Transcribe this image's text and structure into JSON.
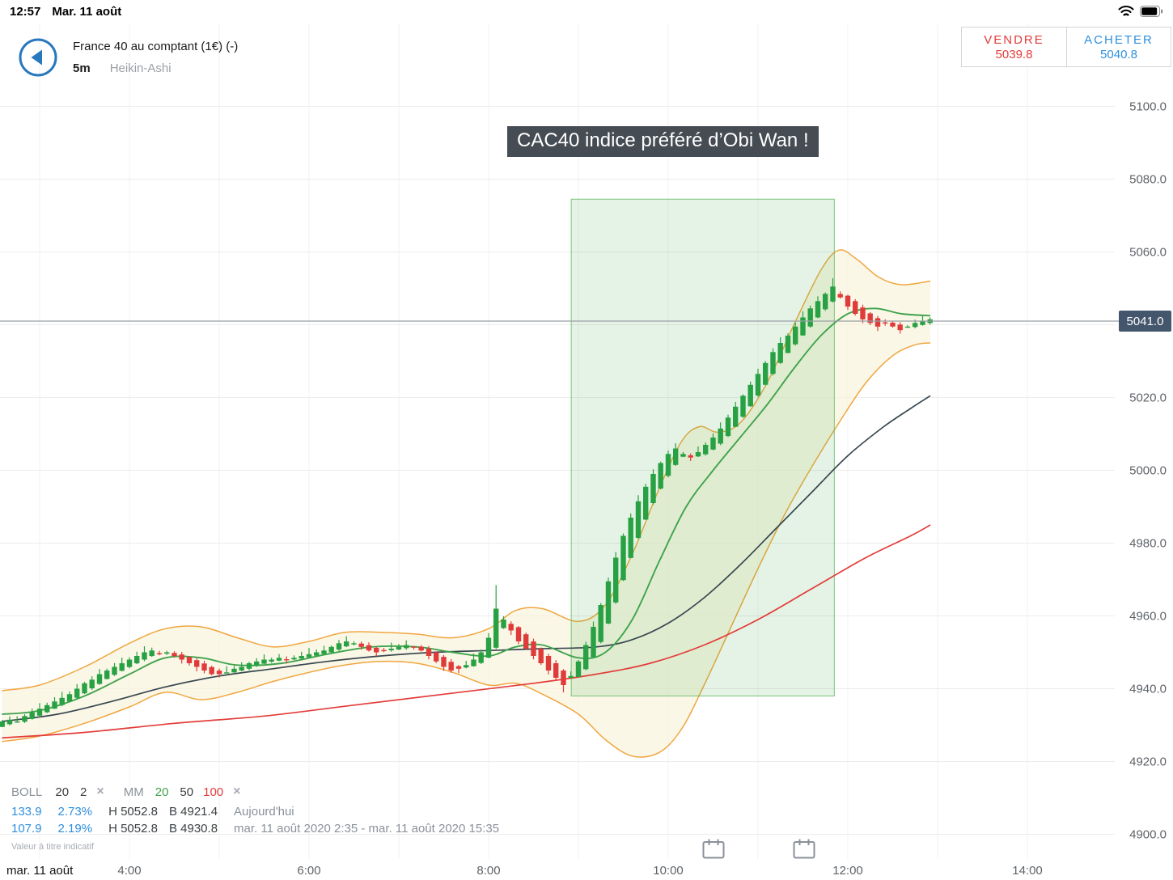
{
  "status_bar": {
    "time": "12:57",
    "date": "Mar. 11 août"
  },
  "header": {
    "instrument": "France 40 au comptant (1€) (-)",
    "timeframe": "5m",
    "chart_type": "Heikin-Ashi",
    "sell": {
      "label": "VENDRE",
      "price": "5039.8"
    },
    "buy": {
      "label": "ACHETER",
      "price": "5040.8"
    }
  },
  "annotation": {
    "text": "CAC40 indice préféré d’Obi Wan !"
  },
  "price_badge": "5041.0",
  "indicators": {
    "boll_label": "BOLL",
    "boll_period": "20",
    "boll_dev": "2",
    "mm_label": "MM",
    "mm_20": "20",
    "mm_50": "50",
    "mm_100": "100",
    "remove_icon": "×",
    "rows": [
      {
        "value": "133.9",
        "percent": "2.73%",
        "high": "H 5052.8",
        "low": "B 4921.4",
        "period": "Aujourd'hui"
      },
      {
        "value": "107.9",
        "percent": "2.19%",
        "high": "H 5052.8",
        "low": "B 4930.8",
        "period": "mar. 11 août 2020 2:35 - mar. 11 août 2020 15:35"
      }
    ],
    "disclaimer": "Valeur à titre indicatif"
  },
  "x_axis": {
    "date_label": "mar. 11 août",
    "ticks": [
      "4:00",
      "6:00",
      "8:00",
      "10:00",
      "12:00",
      "14:00"
    ],
    "tick_hours": [
      4,
      6,
      8,
      10,
      12,
      14
    ]
  },
  "y_axis": {
    "labels": [
      "5100.0",
      "5080.0",
      "5060.0",
      "5020.0",
      "5000.0",
      "4980.0",
      "4960.0",
      "4940.0",
      "4920.0",
      "4900.0"
    ],
    "prices": [
      5100,
      5080,
      5060,
      5020,
      5000,
      4980,
      4960,
      4940,
      4920,
      4900
    ]
  },
  "chart_data": {
    "type": "candlestick",
    "style": "Heikin-Ashi",
    "instrument": "France 40 (CAC40) au comptant",
    "interval": "5m",
    "title": "CAC40 indice préféré d’Obi Wan !",
    "current_price": 5041.0,
    "session_high": 5052.8,
    "session_low": 4930.8,
    "ylim": [
      4900,
      5100
    ],
    "grid_step": 20,
    "start_hour": 2.58333,
    "step_hours": 0.0833333,
    "closes": [
      4931,
      4931.5,
      4931,
      4932.5,
      4933.5,
      4934.5,
      4935.5,
      4936.5,
      4937.5,
      4938.5,
      4940,
      4941.5,
      4942.5,
      4944,
      4945,
      4946,
      4947,
      4948,
      4949,
      4950,
      4950.5,
      4949.5,
      4950,
      4949,
      4948,
      4947,
      4946,
      4945,
      4944,
      4944,
      4944.5,
      4945.5,
      4946,
      4947,
      4947.5,
      4948,
      4948,
      4948.5,
      4948,
      4948.5,
      4949,
      4949.5,
      4950,
      4950.5,
      4951.5,
      4952.5,
      4953,
      4952.5,
      4951.5,
      4950.5,
      4950,
      4950.5,
      4951,
      4951.5,
      4952,
      4951.5,
      4950.5,
      4949,
      4947.5,
      4946,
      4945,
      4945.5,
      4946.5,
      4948,
      4950,
      4954,
      4962,
      4959,
      4956,
      4953,
      4951,
      4949,
      4947,
      4945,
      4943,
      4941,
      4943.5,
      4947.5,
      4952,
      4957,
      4963,
      4969.5,
      4976,
      4982,
      4987,
      4991.5,
      4995.5,
      4999,
      5002,
      5004.5,
      5006,
      5004.5,
      5003.5,
      5005,
      5007,
      5009,
      5011.5,
      5014.5,
      5017.5,
      5020.5,
      5023.5,
      5026.5,
      5029.5,
      5032.5,
      5035,
      5037,
      5039.5,
      5042,
      5044.5,
      5046.5,
      5048.5,
      5050.5,
      5047.5,
      5045,
      5043,
      5041.5,
      5040.5,
      5039.5,
      5040.5,
      5039.5,
      5038.5,
      5039.5,
      5040.5,
      5041,
      5041.5
    ],
    "high_overrides": {
      "66": 4968.5,
      "111": 5052.8
    },
    "low_overrides": {
      "0": 4929.5,
      "75": 4939
    },
    "highlight_box": {
      "t0": 8.92,
      "t1": 11.85,
      "p_top": 5074.5,
      "p_bottom": 4938
    },
    "series": {
      "ma20": {
        "name": "MM 20",
        "color": "#3fa34d",
        "points": [
          [
            2.58,
            4933
          ],
          [
            3.0,
            4934
          ],
          [
            3.5,
            4938
          ],
          [
            4.0,
            4944
          ],
          [
            4.4,
            4948.5
          ],
          [
            4.8,
            4948.5
          ],
          [
            5.2,
            4946.5
          ],
          [
            5.7,
            4947
          ],
          [
            6.2,
            4949.5
          ],
          [
            6.7,
            4951.5
          ],
          [
            7.2,
            4951.5
          ],
          [
            7.6,
            4950
          ],
          [
            8.0,
            4949
          ],
          [
            8.3,
            4951.5
          ],
          [
            8.6,
            4952
          ],
          [
            9.0,
            4948.5
          ],
          [
            9.3,
            4950
          ],
          [
            9.6,
            4959
          ],
          [
            9.9,
            4975
          ],
          [
            10.2,
            4990
          ],
          [
            10.5,
            5000
          ],
          [
            10.8,
            5009
          ],
          [
            11.1,
            5018
          ],
          [
            11.4,
            5028
          ],
          [
            11.7,
            5037
          ],
          [
            12.0,
            5043
          ],
          [
            12.3,
            5044.5
          ],
          [
            12.6,
            5043
          ],
          [
            12.92,
            5042.5
          ]
        ]
      },
      "ma50": {
        "name": "MM 50",
        "color": "#37474f",
        "points": [
          [
            2.58,
            4931
          ],
          [
            3.2,
            4933
          ],
          [
            3.8,
            4936.5
          ],
          [
            4.4,
            4940.5
          ],
          [
            5.0,
            4943.5
          ],
          [
            5.6,
            4945.5
          ],
          [
            6.2,
            4947.5
          ],
          [
            6.8,
            4949
          ],
          [
            7.4,
            4950
          ],
          [
            8.0,
            4950.5
          ],
          [
            8.6,
            4951
          ],
          [
            9.2,
            4951.5
          ],
          [
            9.6,
            4953.5
          ],
          [
            10.0,
            4958
          ],
          [
            10.4,
            4965
          ],
          [
            10.8,
            4974
          ],
          [
            11.2,
            4984
          ],
          [
            11.6,
            4994
          ],
          [
            12.0,
            5004
          ],
          [
            12.4,
            5012
          ],
          [
            12.7,
            5017
          ],
          [
            12.92,
            5020.5
          ]
        ]
      },
      "ma100": {
        "name": "MM 100",
        "color": "#e23c39",
        "points": [
          [
            2.58,
            4926.5
          ],
          [
            3.5,
            4928
          ],
          [
            4.5,
            4930.5
          ],
          [
            5.5,
            4932.5
          ],
          [
            6.5,
            4935.5
          ],
          [
            7.5,
            4938.5
          ],
          [
            8.5,
            4941.5
          ],
          [
            9.2,
            4944
          ],
          [
            9.8,
            4947
          ],
          [
            10.4,
            4952
          ],
          [
            11.0,
            4959
          ],
          [
            11.6,
            4967.5
          ],
          [
            12.2,
            4976
          ],
          [
            12.7,
            4982
          ],
          [
            12.92,
            4985
          ]
        ]
      },
      "boll_upper": {
        "name": "BOLL upper",
        "color": "#f0a63f",
        "points": [
          [
            2.58,
            4939.5
          ],
          [
            3.0,
            4941
          ],
          [
            3.5,
            4946
          ],
          [
            4.0,
            4952.5
          ],
          [
            4.4,
            4956.5
          ],
          [
            4.8,
            4957
          ],
          [
            5.2,
            4954
          ],
          [
            5.6,
            4951.5
          ],
          [
            6.0,
            4953
          ],
          [
            6.4,
            4955.5
          ],
          [
            6.8,
            4955.5
          ],
          [
            7.2,
            4955
          ],
          [
            7.6,
            4954
          ],
          [
            8.0,
            4956.5
          ],
          [
            8.3,
            4961.5
          ],
          [
            8.6,
            4962
          ],
          [
            9.0,
            4958.5
          ],
          [
            9.3,
            4963
          ],
          [
            9.6,
            4977
          ],
          [
            9.9,
            4995
          ],
          [
            10.15,
            5008
          ],
          [
            10.35,
            5012
          ],
          [
            10.55,
            5010.5
          ],
          [
            10.8,
            5013
          ],
          [
            11.1,
            5024
          ],
          [
            11.4,
            5040
          ],
          [
            11.7,
            5055
          ],
          [
            11.9,
            5060.5
          ],
          [
            12.1,
            5058
          ],
          [
            12.35,
            5053
          ],
          [
            12.6,
            5051
          ],
          [
            12.92,
            5052
          ]
        ]
      },
      "boll_lower": {
        "name": "BOLL lower",
        "color": "#f0a63f",
        "points": [
          [
            2.58,
            4925.5
          ],
          [
            3.0,
            4927
          ],
          [
            3.5,
            4930.5
          ],
          [
            4.0,
            4935
          ],
          [
            4.4,
            4939
          ],
          [
            4.8,
            4937
          ],
          [
            5.2,
            4939
          ],
          [
            5.6,
            4942
          ],
          [
            6.0,
            4944.5
          ],
          [
            6.4,
            4946.5
          ],
          [
            6.8,
            4947.5
          ],
          [
            7.2,
            4947
          ],
          [
            7.6,
            4944.5
          ],
          [
            8.0,
            4941
          ],
          [
            8.3,
            4941.5
          ],
          [
            8.6,
            4938.5
          ],
          [
            9.0,
            4933
          ],
          [
            9.3,
            4926
          ],
          [
            9.6,
            4921.5
          ],
          [
            9.9,
            4922.5
          ],
          [
            10.15,
            4929
          ],
          [
            10.4,
            4941
          ],
          [
            10.7,
            4957
          ],
          [
            11.0,
            4973
          ],
          [
            11.3,
            4988
          ],
          [
            11.6,
            5001
          ],
          [
            11.9,
            5013
          ],
          [
            12.2,
            5024
          ],
          [
            12.5,
            5031.5
          ],
          [
            12.75,
            5034.5
          ],
          [
            12.92,
            5035
          ]
        ]
      }
    },
    "colors": {
      "up": "#27a143",
      "down": "#e03b3b",
      "band": "#f0a63f",
      "band_fill": "#faf3dd",
      "highlight": "#4caf50",
      "highlight_border": "#5cb85c",
      "price_line": "#9aa0a6",
      "badge_bg": "#44566b",
      "grid": "#ececec",
      "axis_text": "#5f6368"
    }
  }
}
